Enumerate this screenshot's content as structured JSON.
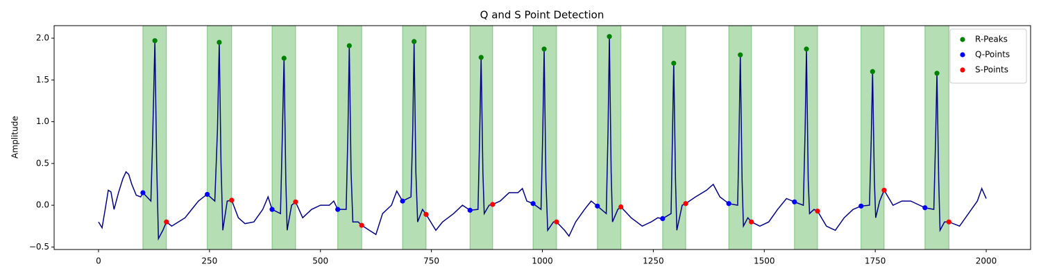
{
  "chart_data": {
    "type": "line",
    "title": "Q and S Point Detection",
    "y_label": "Amplitude",
    "xlim": [
      -100,
      2100
    ],
    "ylim": [
      -0.53,
      2.15
    ],
    "xticks": [
      0,
      250,
      500,
      750,
      1000,
      1250,
      1500,
      1750,
      2000
    ],
    "yticks": [
      {
        "value": -0.5,
        "label": "−0.5"
      },
      {
        "value": 0,
        "label": "0.0"
      },
      {
        "value": 0.5,
        "label": "0.5"
      },
      {
        "value": 1,
        "label": "1.0"
      },
      {
        "value": 1.5,
        "label": "1.5"
      },
      {
        "value": 2,
        "label": "2.0"
      }
    ],
    "span_color": "#2ca02c",
    "legend": "upper right",
    "signal": {
      "color": "#00008b",
      "x": [
        0,
        8,
        15,
        22,
        28,
        35,
        45,
        55,
        62,
        68,
        75,
        85,
        95,
        100,
        118,
        122,
        127,
        131,
        135,
        145,
        153,
        165,
        180,
        195,
        210,
        225,
        237,
        245,
        262,
        268,
        272,
        276,
        280,
        290,
        300,
        315,
        330,
        350,
        370,
        382,
        391,
        410,
        414,
        418,
        422,
        425,
        435,
        444,
        460,
        480,
        500,
        520,
        530,
        539,
        558,
        562,
        565,
        569,
        573,
        585,
        593,
        610,
        625,
        640,
        660,
        672,
        685,
        704,
        708,
        711,
        715,
        719,
        730,
        738,
        760,
        775,
        800,
        820,
        837,
        855,
        859,
        862,
        866,
        869,
        880,
        888,
        905,
        925,
        945,
        955,
        965,
        979,
        997,
        1001,
        1004,
        1008,
        1012,
        1025,
        1032,
        1050,
        1060,
        1075,
        1095,
        1110,
        1124,
        1144,
        1148,
        1151,
        1155,
        1158,
        1170,
        1177,
        1200,
        1225,
        1245,
        1260,
        1271,
        1290,
        1293,
        1296,
        1300,
        1303,
        1315,
        1323,
        1345,
        1370,
        1385,
        1400,
        1420,
        1440,
        1443,
        1446,
        1450,
        1453,
        1463,
        1471,
        1490,
        1510,
        1530,
        1550,
        1568,
        1588,
        1592,
        1595,
        1599,
        1602,
        1612,
        1620,
        1640,
        1660,
        1680,
        1700,
        1718,
        1737,
        1741,
        1744,
        1748,
        1751,
        1760,
        1770,
        1790,
        1810,
        1830,
        1850,
        1862,
        1882,
        1886,
        1889,
        1893,
        1896,
        1906,
        1916,
        1940,
        1960,
        1980,
        1990,
        2000
      ],
      "y": [
        -0.2,
        -0.27,
        -0.05,
        0.18,
        0.16,
        -0.05,
        0.15,
        0.32,
        0.4,
        0.37,
        0.25,
        0.12,
        0.1,
        0.15,
        0.05,
        0.8,
        1.97,
        0.5,
        -0.4,
        -0.3,
        -0.2,
        -0.25,
        -0.2,
        -0.15,
        -0.05,
        0.05,
        0.1,
        0.13,
        0.05,
        0.9,
        1.95,
        0.5,
        -0.3,
        0.05,
        0.06,
        -0.15,
        -0.22,
        -0.2,
        -0.05,
        0.1,
        -0.05,
        -0.1,
        0.8,
        1.76,
        0.3,
        -0.3,
        0,
        0.04,
        -0.15,
        -0.05,
        0,
        0,
        0.05,
        -0.05,
        -0.05,
        0.9,
        1.91,
        0.4,
        -0.2,
        -0.2,
        -0.24,
        -0.3,
        -0.35,
        -0.1,
        0,
        0.17,
        0.05,
        0.1,
        0.9,
        1.96,
        0.4,
        -0.2,
        -0.05,
        -0.11,
        -0.3,
        -0.2,
        -0.1,
        0,
        -0.06,
        -0.05,
        0.9,
        1.77,
        0.4,
        -0.1,
        0,
        0.01,
        0.05,
        0.15,
        0.15,
        0.2,
        0.05,
        0.02,
        -0.05,
        0.9,
        1.87,
        0.3,
        -0.3,
        -0.2,
        -0.2,
        -0.3,
        -0.37,
        -0.2,
        -0.05,
        0.05,
        -0.01,
        -0.1,
        0.9,
        2.02,
        0.4,
        -0.2,
        -0.05,
        -0.02,
        -0.15,
        -0.25,
        -0.2,
        -0.15,
        -0.16,
        -0.1,
        0.8,
        1.7,
        0.3,
        -0.3,
        0,
        0.02,
        0.1,
        0.18,
        0.25,
        0.1,
        0.02,
        0,
        0.8,
        1.8,
        0.3,
        -0.25,
        -0.15,
        -0.2,
        -0.25,
        -0.2,
        -0.05,
        0.08,
        0.04,
        0,
        0.9,
        1.87,
        0.3,
        -0.1,
        -0.05,
        -0.07,
        -0.25,
        -0.3,
        -0.15,
        -0.05,
        -0.01,
        0,
        0.8,
        1.6,
        0.3,
        -0.15,
        0.05,
        0.18,
        0,
        0.05,
        0.05,
        0,
        -0.03,
        -0.05,
        0.8,
        1.58,
        0.3,
        -0.3,
        -0.2,
        -0.2,
        -0.25,
        -0.1,
        0.05,
        0.2,
        0.08
      ]
    },
    "series": [
      {
        "name": "R-Peaks",
        "color": "green",
        "x": [
          127,
          272,
          418,
          565,
          711,
          862,
          1004,
          1151,
          1296,
          1446,
          1595,
          1744,
          1889
        ],
        "values": [
          1.97,
          1.95,
          1.76,
          1.91,
          1.96,
          1.77,
          1.87,
          2.02,
          1.7,
          1.8,
          1.87,
          1.6,
          1.58
        ]
      },
      {
        "name": "Q-Points",
        "color": "blue",
        "x": [
          100,
          245,
          391,
          539,
          685,
          837,
          979,
          1124,
          1271,
          1420,
          1568,
          1718,
          1862
        ],
        "values": [
          0.15,
          0.13,
          -0.05,
          -0.05,
          0.05,
          -0.06,
          0.02,
          -0.01,
          -0.16,
          0.02,
          0.04,
          -0.01,
          -0.03
        ]
      },
      {
        "name": "S-Points",
        "color": "red",
        "x": [
          153,
          300,
          444,
          593,
          738,
          888,
          1032,
          1177,
          1323,
          1471,
          1620,
          1770,
          1916
        ],
        "values": [
          -0.2,
          0.06,
          0.04,
          -0.24,
          -0.11,
          0.01,
          -0.2,
          -0.02,
          0.02,
          -0.2,
          -0.07,
          0.18,
          -0.2
        ]
      }
    ]
  }
}
